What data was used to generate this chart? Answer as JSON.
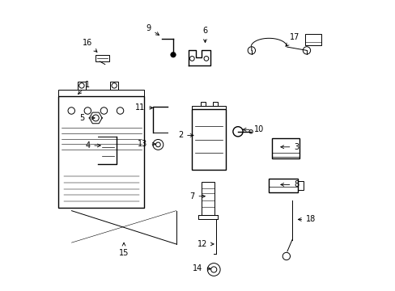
{
  "background_color": "#ffffff",
  "line_color": "#000000",
  "label_color": "#000000",
  "labels": {
    "1": [
      0.08,
      0.67,
      0.04,
      0.04
    ],
    "2": [
      0.495,
      0.535,
      -0.055,
      0.0
    ],
    "3": [
      0.775,
      0.495,
      0.065,
      0.0
    ],
    "4": [
      0.175,
      0.5,
      -0.055,
      0.0
    ],
    "5": [
      0.155,
      0.595,
      -0.055,
      0.0
    ],
    "6": [
      0.525,
      0.845,
      0.0,
      0.05
    ],
    "7": [
      0.535,
      0.325,
      -0.055,
      0.0
    ],
    "8": [
      0.775,
      0.365,
      0.065,
      0.0
    ],
    "9": [
      0.375,
      0.875,
      -0.045,
      0.03
    ],
    "10": [
      0.645,
      0.555,
      0.065,
      0.0
    ],
    "11": [
      0.355,
      0.63,
      -0.055,
      0.0
    ],
    "12": [
      0.565,
      0.16,
      -0.05,
      0.0
    ],
    "13": [
      0.365,
      0.505,
      -0.055,
      0.0
    ],
    "14": [
      0.555,
      0.075,
      -0.055,
      0.0
    ],
    "15": [
      0.245,
      0.175,
      0.0,
      -0.045
    ],
    "16": [
      0.16,
      0.815,
      -0.04,
      0.04
    ],
    "17": [
      0.795,
      0.835,
      0.04,
      0.04
    ],
    "18": [
      0.835,
      0.245,
      0.055,
      0.0
    ]
  }
}
